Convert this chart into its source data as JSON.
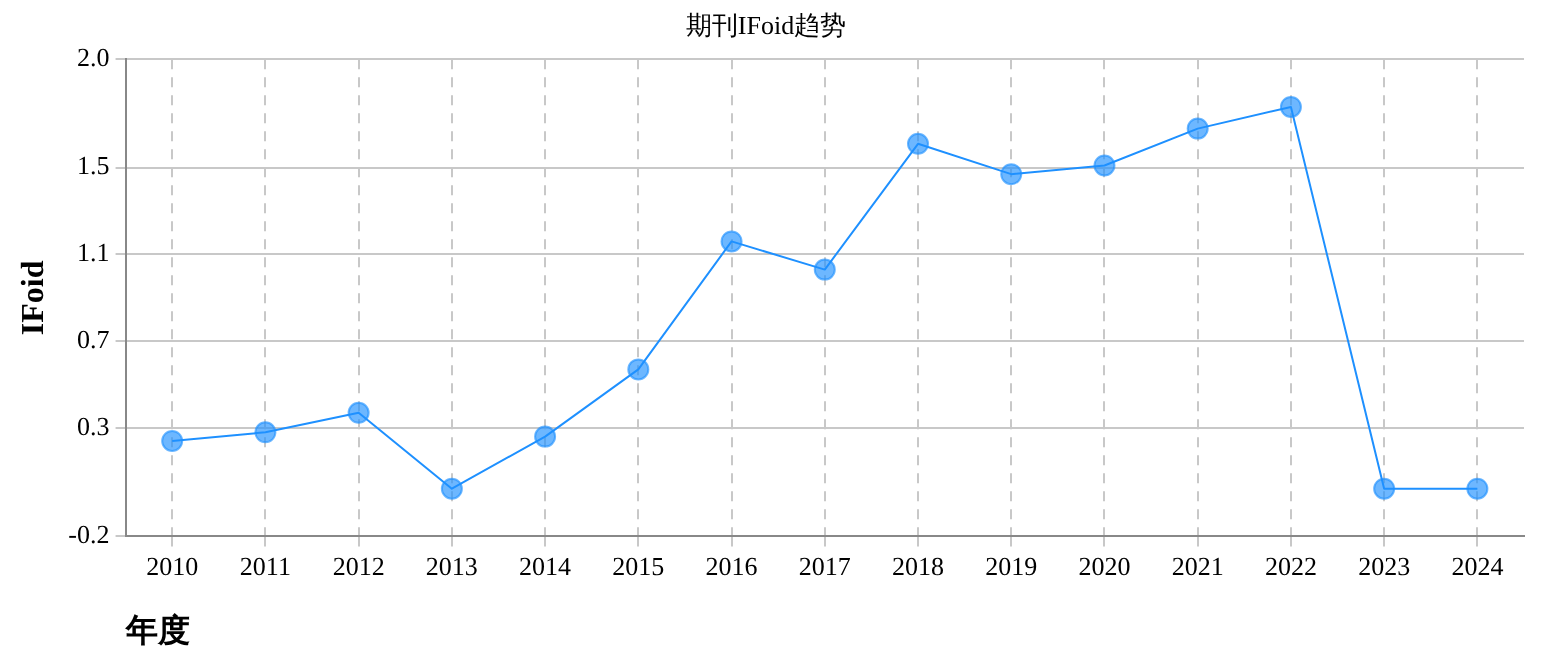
{
  "chart_data": {
    "type": "line",
    "title": "期刊IFoid趋势",
    "xlabel": "年度",
    "ylabel": "IFoid",
    "categories": [
      "2010",
      "2011",
      "2012",
      "2013",
      "2014",
      "2015",
      "2016",
      "2017",
      "2018",
      "2019",
      "2020",
      "2021",
      "2022",
      "2023",
      "2024"
    ],
    "series": [
      {
        "color": "#1e90ff",
        "values": [
          0.24,
          0.28,
          0.37,
          0.02,
          0.26,
          0.57,
          1.16,
          1.03,
          1.61,
          1.47,
          1.51,
          1.68,
          1.78,
          0.02,
          0.02
        ]
      }
    ],
    "ylim": [
      -0.2,
      2.0
    ],
    "yticks": [
      -0.2,
      0.3,
      0.7,
      1.1,
      1.5,
      {
        "value": 2.0,
        "label": "2.0"
      }
    ],
    "grid": true,
    "marker": "circle",
    "line_style": "solid",
    "legend": false
  }
}
